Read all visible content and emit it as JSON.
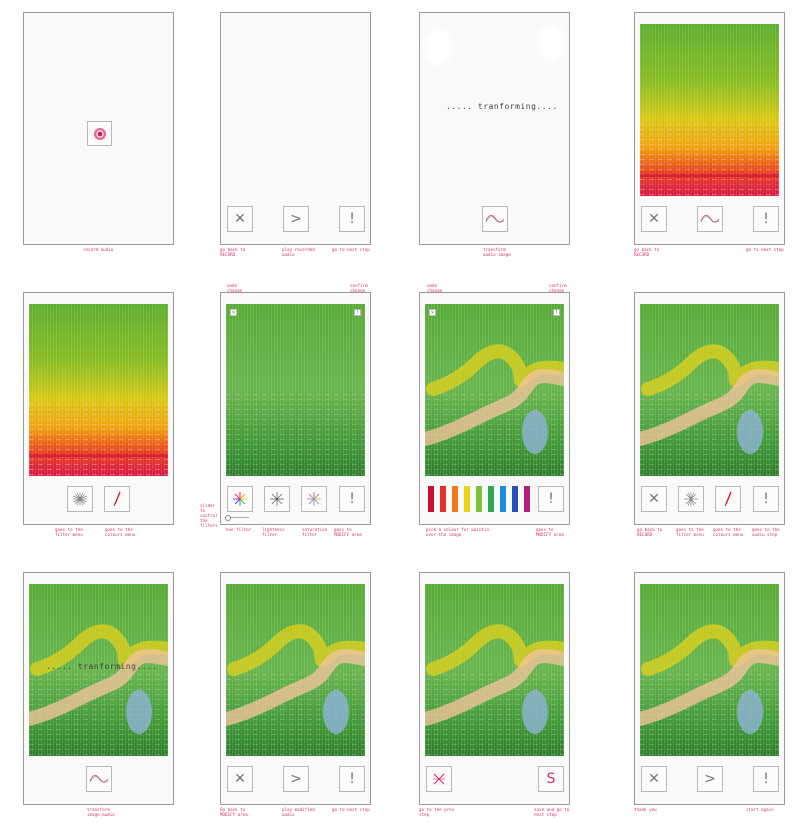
{
  "symbols": {
    "back": "✕",
    "play": ">",
    "next": "!",
    "save": "S",
    "undo": "✕",
    "confirm": "!"
  },
  "transforming_text": "..... tranforming....",
  "palette": [
    "#c8102e",
    "#e0322b",
    "#f07a1a",
    "#e8d21a",
    "#7cc23a",
    "#2fa84a",
    "#1f8ad6",
    "#2450b8",
    "#b0217a"
  ],
  "captions": {
    "r1c1": "record audio",
    "r1c2_back": "go back to\nRECORD",
    "r1c2_play": "play recorded\naudio",
    "r1c2_next": "go to next step",
    "r1c3": "transform\naudio-image",
    "r1c4_back": "go back to\nRECORD",
    "r1c4_next": "go to next step",
    "r2c1_filters": "goes to the\nfilter menu",
    "r2c1_colours": "goes to the\ncolours menu",
    "r2c2_undo": "undo\nchange",
    "r2c2_confirm": "confirm\nchange",
    "r2c2_slider": "slider\nto\ncontrol\nthe\nfilters",
    "r2c2_hue": "hue filter",
    "r2c2_lightness": "lightness\nfilter",
    "r2c2_saturation": "saturation\nfilter",
    "r2c2_next": "goes to\nMODIFY area",
    "r2c3_undo": "undo\nchange",
    "r2c3_confirm": "confirm\nchange",
    "r2c3_pick": "pick a colour for paintin\nover the image",
    "r2c3_next": "goes to\nMODIFY area",
    "r2c4_back": "go back to\nRECORD",
    "r2c4_filters": "goes to the\nfilter menu",
    "r2c4_colours": "goes to the\ncolours menu",
    "r2c4_audio": "goes to the\naudio step",
    "r3c1": "transform\nimage-audio",
    "r3c2_back": "Go back to\nMODIFY area",
    "r3c2_play": "play modified\naudio",
    "r3c2_next": "go to next step",
    "r3c3_back": "go to the prev\nstep",
    "r3c3_save": "save and go to\nnext step",
    "r3c4_back": "thank you",
    "r3c4_next": "start again"
  }
}
